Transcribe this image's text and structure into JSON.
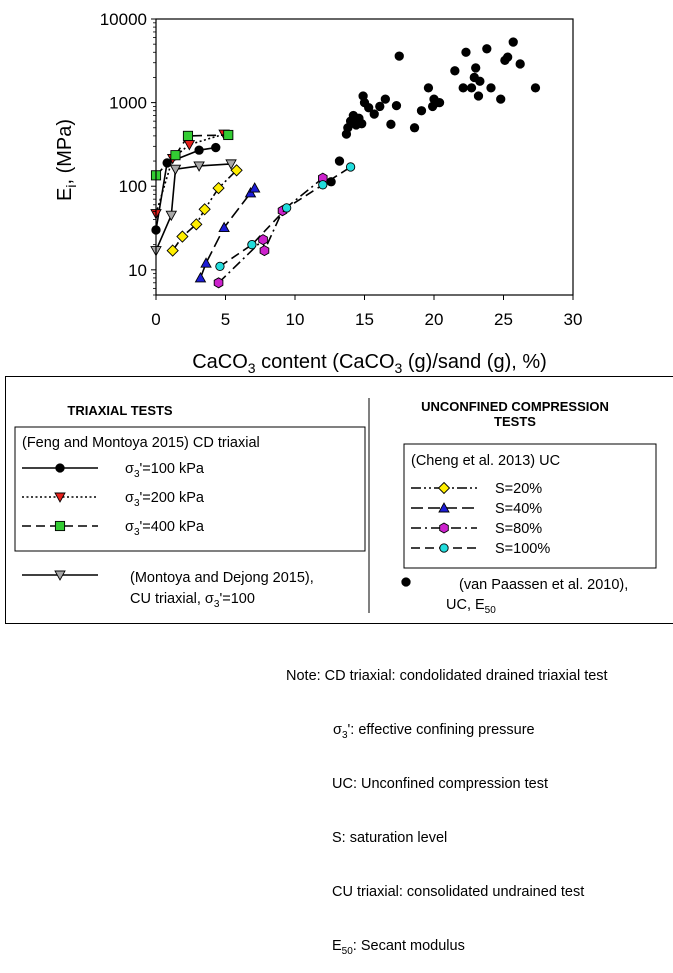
{
  "chart_data": {
    "type": "scatter",
    "xlabel": {
      "main": "CaCO",
      "sub": "3",
      "mid": " content (CaCO",
      "sub2": "3",
      "tail": " (g)/sand (g), %)"
    },
    "ylabel": {
      "main": "E",
      "sub": "i",
      "tail": ", (MPa)"
    },
    "xlim": [
      0,
      30
    ],
    "ylim": [
      5,
      10000
    ],
    "yscale": "log",
    "xticks": [
      "0",
      "5",
      "10",
      "15",
      "20",
      "25",
      "30"
    ],
    "yticks": [
      "10",
      "100",
      "1000",
      "10000"
    ],
    "series": [
      {
        "key": "s100",
        "style": "solid",
        "marker": "circle",
        "color": "#000000",
        "x": [
          0,
          0.8,
          3.1,
          4.3
        ],
        "y": [
          30,
          190,
          270,
          290
        ]
      },
      {
        "key": "s200",
        "style": "dotted",
        "marker": "triangle-down",
        "color": "#e8201c",
        "x": [
          0,
          1.2,
          2.4,
          4.9
        ],
        "y": [
          47,
          215,
          315,
          420
        ]
      },
      {
        "key": "s400",
        "style": "dashed",
        "marker": "square",
        "color": "#33cc33",
        "x": [
          0,
          1.4,
          2.3,
          5.2
        ],
        "y": [
          135,
          235,
          400,
          410
        ]
      },
      {
        "key": "mont",
        "style": "solid",
        "marker": "triangle-down",
        "color": "#a8a8a8",
        "x": [
          0,
          1.1,
          1.4,
          3.1,
          5.4
        ],
        "y": [
          17,
          45,
          160,
          175,
          185
        ]
      },
      {
        "key": "uc20",
        "style": "dashdotdot",
        "marker": "diamond",
        "color": "#ffee00",
        "x": [
          1.2,
          1.9,
          2.9,
          3.5,
          4.5,
          5.8
        ],
        "y": [
          17,
          25,
          35,
          53,
          95,
          155
        ]
      },
      {
        "key": "uc40",
        "style": "longdash",
        "marker": "triangle-up",
        "color": "#1c1cd6",
        "x": [
          3.2,
          3.6,
          4.9,
          6.8,
          7.1
        ],
        "y": [
          8,
          12,
          32,
          83,
          95
        ]
      },
      {
        "key": "uc80",
        "style": "dashdot",
        "marker": "hexagon",
        "color": "#cc22cc",
        "x": [
          4.5,
          7.7,
          7.8,
          9.1,
          12.0
        ],
        "y": [
          7,
          23,
          17,
          51,
          125
        ]
      },
      {
        "key": "uc100",
        "style": "dashed",
        "marker": "circle",
        "color": "#22dddd",
        "x": [
          4.6,
          6.9,
          9.4,
          12.0,
          14.0
        ],
        "y": [
          11,
          20,
          55,
          104,
          170
        ]
      },
      {
        "key": "vp",
        "style": "none",
        "marker": "circle",
        "color": "#000000",
        "x": [
          12.6,
          13.2,
          13.7,
          13.8,
          14.0,
          14.2,
          14.4,
          14.6,
          14.8,
          14.9,
          15.0,
          15.3,
          15.7,
          16.1,
          16.5,
          16.9,
          17.3,
          17.5,
          18.6,
          19.1,
          19.6,
          19.9,
          20.0,
          20.2,
          20.4,
          21.5,
          22.1,
          22.3,
          22.7,
          22.9,
          23.0,
          23.2,
          23.3,
          23.8,
          24.1,
          24.8,
          25.1,
          25.3,
          25.7,
          26.2,
          27.3
        ],
        "y": [
          113,
          200,
          420,
          500,
          600,
          700,
          540,
          650,
          560,
          1200,
          1000,
          870,
          730,
          900,
          1100,
          550,
          920,
          3600,
          500,
          800,
          1500,
          900,
          1100,
          1000,
          1000,
          2400,
          1500,
          4000,
          1500,
          2000,
          2600,
          1200,
          1800,
          4400,
          1500,
          1100,
          3200,
          3500,
          5300,
          2900,
          1500
        ]
      }
    ]
  },
  "legend": {
    "triaxial": {
      "title": "TRIAXIAL TESTS",
      "feng_title": "(Feng and Montoya 2015) CD triaxial",
      "entries": [
        {
          "key": "s100",
          "label": "σ",
          "sub": "3",
          "rest": "'=100 kPa"
        },
        {
          "key": "s200",
          "label": "σ",
          "sub": "3",
          "rest": "'=200 kPa"
        },
        {
          "key": "s400",
          "label": "σ",
          "sub": "3",
          "rest": "'=400 kPa"
        }
      ],
      "montoya_line1": "(Montoya and Dejong 2015),",
      "montoya_line2": "CU triaxial, σ",
      "montoya_sub": "3",
      "montoya_rest": "'=100"
    },
    "ucs": {
      "title_line1": "UNCONFINED COMPRESSION",
      "title_line2": "TESTS",
      "cheng_title": "(Cheng et al. 2013) UC",
      "entries": [
        {
          "key": "uc20",
          "label": "S=20%"
        },
        {
          "key": "uc40",
          "label": "S=40%"
        },
        {
          "key": "uc80",
          "label": "S=80%"
        },
        {
          "key": "uc100",
          "label": "S=100%"
        }
      ],
      "vp_line1": "(van Paassen et al. 2010),",
      "vp_line2": "UC, E",
      "vp_sub": "50"
    }
  },
  "notes": {
    "line1": "Note: CD triaxial: condolidated drained triaxial test",
    "line2_pre": "σ",
    "line2_sub": "3",
    "line2_post": "': effective confining pressure",
    "line3": "UC: Unconfined compression test",
    "line4": "S: saturation level",
    "line5": "CU triaxial: consolidated undrained test",
    "line6_pre": "E",
    "line6_sub": "50",
    "line6_post": ": Secant modulus"
  }
}
